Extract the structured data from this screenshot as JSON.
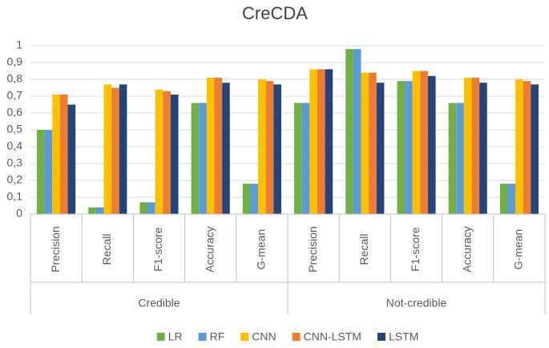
{
  "chart_data": {
    "type": "bar",
    "title": "CreCDA",
    "category_groups": [
      {
        "name": "Credible",
        "categories": [
          "Precision",
          "Recall",
          "F1-score",
          "Accuracy",
          "G-mean"
        ]
      },
      {
        "name": "Not-credible",
        "categories": [
          "Precision",
          "Recall",
          "F1-score",
          "Accuracy",
          "G-mean"
        ]
      }
    ],
    "series": [
      {
        "name": "LR",
        "color": "#70ad47",
        "values": [
          0.5,
          0.04,
          0.07,
          0.66,
          0.18,
          0.66,
          0.98,
          0.79,
          0.66,
          0.18
        ]
      },
      {
        "name": "RF",
        "color": "#5b9bd5",
        "values": [
          0.5,
          0.04,
          0.07,
          0.66,
          0.18,
          0.66,
          0.98,
          0.79,
          0.66,
          0.18
        ]
      },
      {
        "name": "CNN",
        "color": "#ffc000",
        "values": [
          0.71,
          0.77,
          0.74,
          0.81,
          0.8,
          0.86,
          0.84,
          0.85,
          0.81,
          0.8
        ]
      },
      {
        "name": "CNN-LSTM",
        "color": "#ed7d31",
        "values": [
          0.71,
          0.75,
          0.73,
          0.81,
          0.79,
          0.86,
          0.84,
          0.85,
          0.81,
          0.79
        ]
      },
      {
        "name": "LSTM",
        "color": "#264478",
        "values": [
          0.65,
          0.77,
          0.71,
          0.78,
          0.77,
          0.86,
          0.78,
          0.82,
          0.78,
          0.77
        ]
      }
    ],
    "ylim": [
      0,
      1
    ],
    "yticks": [
      0,
      {
        "value": 0.1,
        "label": "0,1"
      },
      {
        "value": 0.2,
        "label": "0,2"
      },
      {
        "value": 0.3,
        "label": "0,3"
      },
      {
        "value": 0.4,
        "label": "0,4"
      },
      {
        "value": 0.5,
        "label": "0,5"
      },
      {
        "value": 0.6,
        "label": "0,6"
      },
      {
        "value": 0.7,
        "label": "0,7"
      },
      {
        "value": 0.8,
        "label": "0,8"
      },
      {
        "value": 0.9,
        "label": "0,9"
      },
      1
    ],
    "grid": true,
    "legend": "bottom"
  }
}
